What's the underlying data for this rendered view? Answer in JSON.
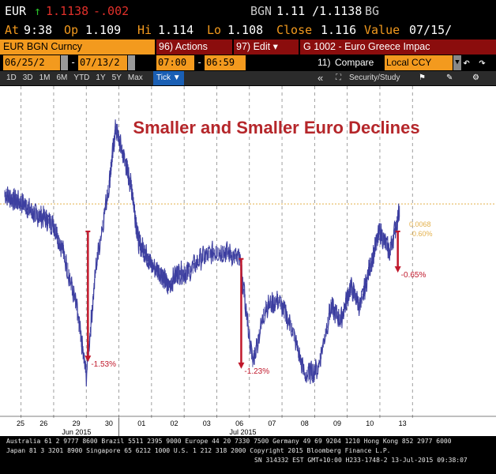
{
  "header": {
    "ticker": "EUR",
    "arrow": "↑",
    "last_price": "1.1138",
    "change": "-.002",
    "bgn_label": "BGN",
    "bgn_quote": "1.11 /1.1138",
    "bgn_suffix": "BG"
  },
  "quote_line": {
    "at_label": "At",
    "at_value": "9:38",
    "op_label": "Op",
    "op_value": "1.109",
    "hi_label": "Hi",
    "hi_value": "1.114",
    "lo_label": "Lo",
    "lo_value": "1.108",
    "close_label": "Close",
    "close_value": "1.116",
    "value_label": "Value",
    "value_value": "07/15/"
  },
  "command_bar": {
    "security": "EUR BGN Curncy",
    "actions_num": "96)",
    "actions_label": "Actions",
    "edit_num": "97)",
    "edit_label": "Edit",
    "edit_caret": "▾",
    "page_title": "G 1002 - Euro Greece Impac"
  },
  "range_bar": {
    "start_date": "06/25/2",
    "end_date": "07/13/2",
    "start_time": "07:00",
    "end_time": "06:59",
    "compare_num": "11)",
    "compare_label": "Compare",
    "ccy_option": "Local CCY"
  },
  "toolbar": {
    "periods": [
      "1D",
      "3D",
      "1M",
      "6M",
      "YTD",
      "1Y",
      "5Y",
      "Max"
    ],
    "active_period": "Tick",
    "active_caret": "▼",
    "collapse": "«",
    "security_study": "Security/Study"
  },
  "footer": {
    "line1": "Australia 61 2 9777 8600 Brazil 5511 2395 9000 Europe 44 20 7330 7500 Germany 49 69 9204 1210 Hong Kong 852 2977 6000",
    "line2": "Japan 81 3 3201 8900        Singapore 65 6212 1000         U.S. 1 212 318 2000        Copyright 2015 Bloomberg Finance L.P.",
    "line3": "SN 314332 EST  GMT+10:00 H233-1748-2 13-Jul-2015 09:38:07"
  },
  "colors": {
    "bloomberg_orange": "#f39a1e",
    "price_line": "#3d3fa0",
    "decline_arrow": "#c0182b",
    "title": "#b5262a",
    "reference_line": "#e3b04a"
  },
  "chart_data": {
    "type": "line",
    "title": "Smaller and Smaller Euro Declines",
    "x_tick_labels": [
      "25",
      "26",
      "29",
      "30",
      "01",
      "02",
      "03",
      "06",
      "07",
      "08",
      "09",
      "10",
      "13"
    ],
    "month_labels": [
      "Jun 2015",
      "Jul 2015"
    ],
    "ylim": [
      1.085,
      1.131
    ],
    "series": [
      {
        "x": [
          0,
          0.3,
          0.6,
          0.9,
          1.2,
          1.5,
          1.8,
          2.2,
          2.5,
          2.8,
          3.2,
          3.4,
          3.7,
          3.9,
          4.1,
          4.3,
          4.5,
          4.8,
          5.0,
          5.3,
          5.6,
          6.0,
          6.4,
          6.8,
          7.2,
          7.6,
          8.0,
          8.4,
          8.8,
          9.2,
          9.6,
          10.0,
          10.3,
          10.6,
          10.9,
          11.2,
          11.5,
          11.8,
          12.1
        ],
        "y": [
          1.1165,
          1.1155,
          1.115,
          1.1135,
          1.113,
          1.112,
          1.108,
          1.1,
          1.09,
          1.106,
          1.118,
          1.126,
          1.121,
          1.117,
          1.1095,
          1.108,
          1.106,
          1.105,
          1.103,
          1.105,
          1.105,
          1.107,
          1.108,
          1.108,
          1.107,
          1.092,
          1.1,
          1.101,
          1.097,
          1.09,
          1.091,
          1.1,
          1.098,
          1.103,
          1.1,
          1.106,
          1.111,
          1.108,
          1.114
        ]
      }
    ],
    "reference_line": 1.115,
    "reference_label": "0.0068",
    "declines": [
      {
        "x": 2.55,
        "from": 1.111,
        "to": 1.092,
        "label": "-1.53%"
      },
      {
        "x": 7.25,
        "from": 1.107,
        "to": 1.091,
        "label": "-1.23%"
      },
      {
        "x": 12.05,
        "from": 1.111,
        "to": 1.105,
        "label": "-0.65%"
      }
    ],
    "current_change_label": "-0.60%",
    "grid": "vertical-dashed"
  }
}
